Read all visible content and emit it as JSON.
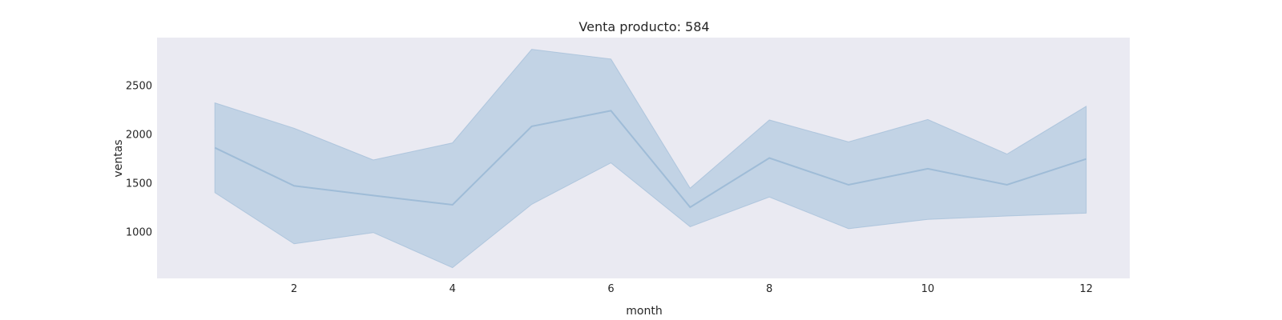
{
  "chart_data": {
    "type": "line",
    "title": "Venta producto: 584",
    "xlabel": "month",
    "ylabel": "ventas",
    "x": [
      1,
      2,
      3,
      4,
      5,
      6,
      7,
      8,
      9,
      10,
      11,
      12
    ],
    "series": [
      {
        "values": [
          1860,
          1470,
          1370,
          1275,
          2080,
          2240,
          1250,
          1755,
          1480,
          1645,
          1480,
          1745
        ],
        "band_low": [
          1400,
          875,
          990,
          630,
          1280,
          1705,
          1050,
          1355,
          1030,
          1125,
          1160,
          1190
        ],
        "band_high": [
          2320,
          2060,
          1735,
          1910,
          2870,
          2770,
          1445,
          2145,
          1920,
          2150,
          1795,
          2285
        ]
      }
    ],
    "xlim": [
      0.27,
      12.55
    ],
    "ylim": [
      520,
      2990
    ],
    "xticks": [
      2,
      4,
      6,
      8,
      10,
      12
    ],
    "yticks": [
      1000,
      1500,
      2000,
      2500
    ],
    "grid": false,
    "colors": {
      "plot_background": "#eaeaf2",
      "line": "#9fbcd7",
      "band": "#c2d3e5",
      "text": "#262626"
    }
  }
}
